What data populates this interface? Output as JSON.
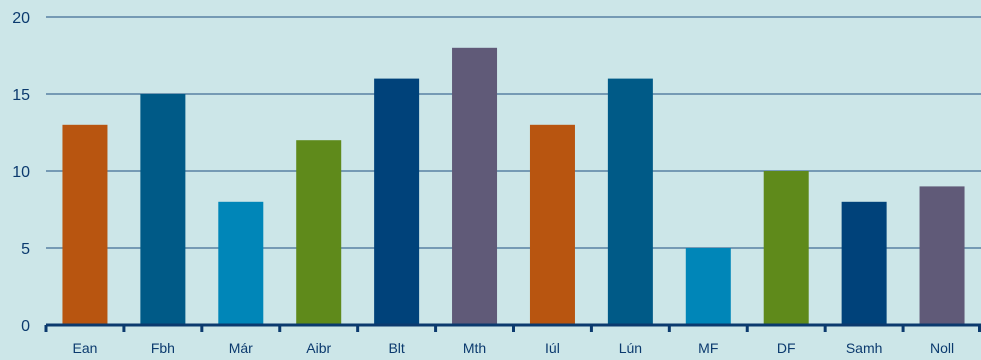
{
  "chart_data": {
    "type": "bar",
    "categories": [
      "Ean",
      "Fbh",
      "Már",
      "Aibr",
      "Blt",
      "Mth",
      "Iúl",
      "Lún",
      "MF",
      "DF",
      "Samh",
      "Noll"
    ],
    "values": [
      13,
      15,
      8,
      12,
      16,
      18,
      13,
      16,
      5,
      10,
      8,
      9
    ],
    "colors": [
      "#b85510",
      "#005a87",
      "#0086b8",
      "#5f8a1b",
      "#00427a",
      "#605a78",
      "#b85510",
      "#005a87",
      "#0086b8",
      "#5f8a1b",
      "#00427a",
      "#605a78"
    ],
    "yticks": [
      0,
      5,
      10,
      15,
      20
    ],
    "ylim": [
      0,
      20
    ],
    "title": "",
    "xlabel": "",
    "ylabel": "",
    "grid": true,
    "legend": "none"
  }
}
